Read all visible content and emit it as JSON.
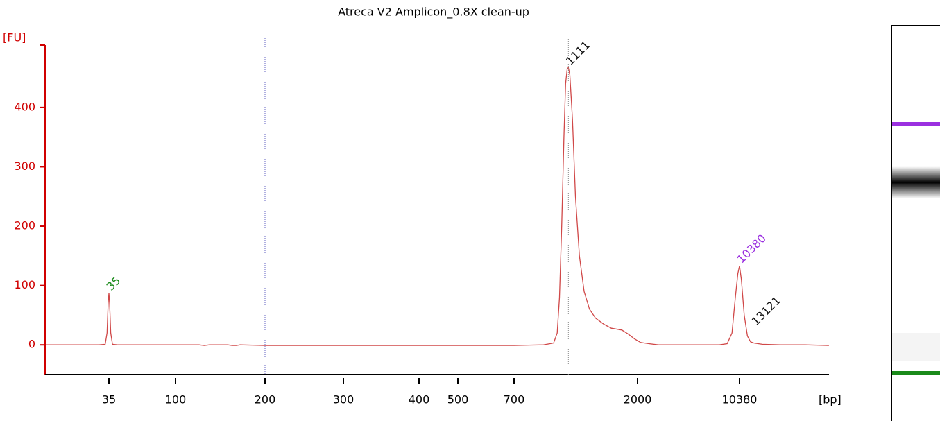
{
  "chart_data": {
    "type": "line",
    "title": "Atreca V2 Amplicon_0.8X clean-up",
    "x_label": "[bp]",
    "y_label": "[FU]",
    "color": "#d04848",
    "x": [
      13,
      30,
      33,
      34,
      34.6,
      35,
      35.4,
      36,
      37,
      40,
      120,
      125,
      130,
      150,
      155,
      160,
      165,
      200,
      700,
      900,
      980,
      1010,
      1030,
      1050,
      1070,
      1085,
      1100,
      1111,
      1125,
      1150,
      1180,
      1220,
      1270,
      1330,
      1400,
      1500,
      1600,
      1750,
      1850,
      1950,
      2100,
      2400,
      2800,
      7500,
      8500,
      9200,
      9700,
      10100,
      10380,
      10700,
      11200,
      11800,
      12400,
      13121,
      15000,
      20000,
      30000,
      44000
    ],
    "values": [
      0,
      0,
      1,
      20,
      70,
      87,
      70,
      20,
      1,
      0,
      0,
      -1,
      0,
      0,
      -1,
      -1,
      0,
      -1,
      -1,
      0,
      3,
      20,
      80,
      200,
      350,
      440,
      465,
      467,
      455,
      380,
      250,
      150,
      90,
      60,
      45,
      35,
      28,
      25,
      18,
      10,
      4,
      2,
      0,
      0,
      2,
      20,
      80,
      120,
      133,
      110,
      50,
      15,
      5,
      3,
      1,
      0,
      0,
      -1
    ],
    "xticks": [
      35,
      100,
      200,
      300,
      400,
      500,
      700,
      2000,
      10380
    ],
    "ylim": [
      -50,
      505
    ],
    "yticks": [
      0,
      100,
      200,
      300,
      400
    ],
    "peaks": [
      {
        "value": 35,
        "color": "#1a8a1a"
      },
      {
        "value": 1111,
        "color": "#111111"
      },
      {
        "value": 10380,
        "color": "#9b30e0"
      },
      {
        "value": 13121,
        "color": "#111111"
      }
    ]
  }
}
